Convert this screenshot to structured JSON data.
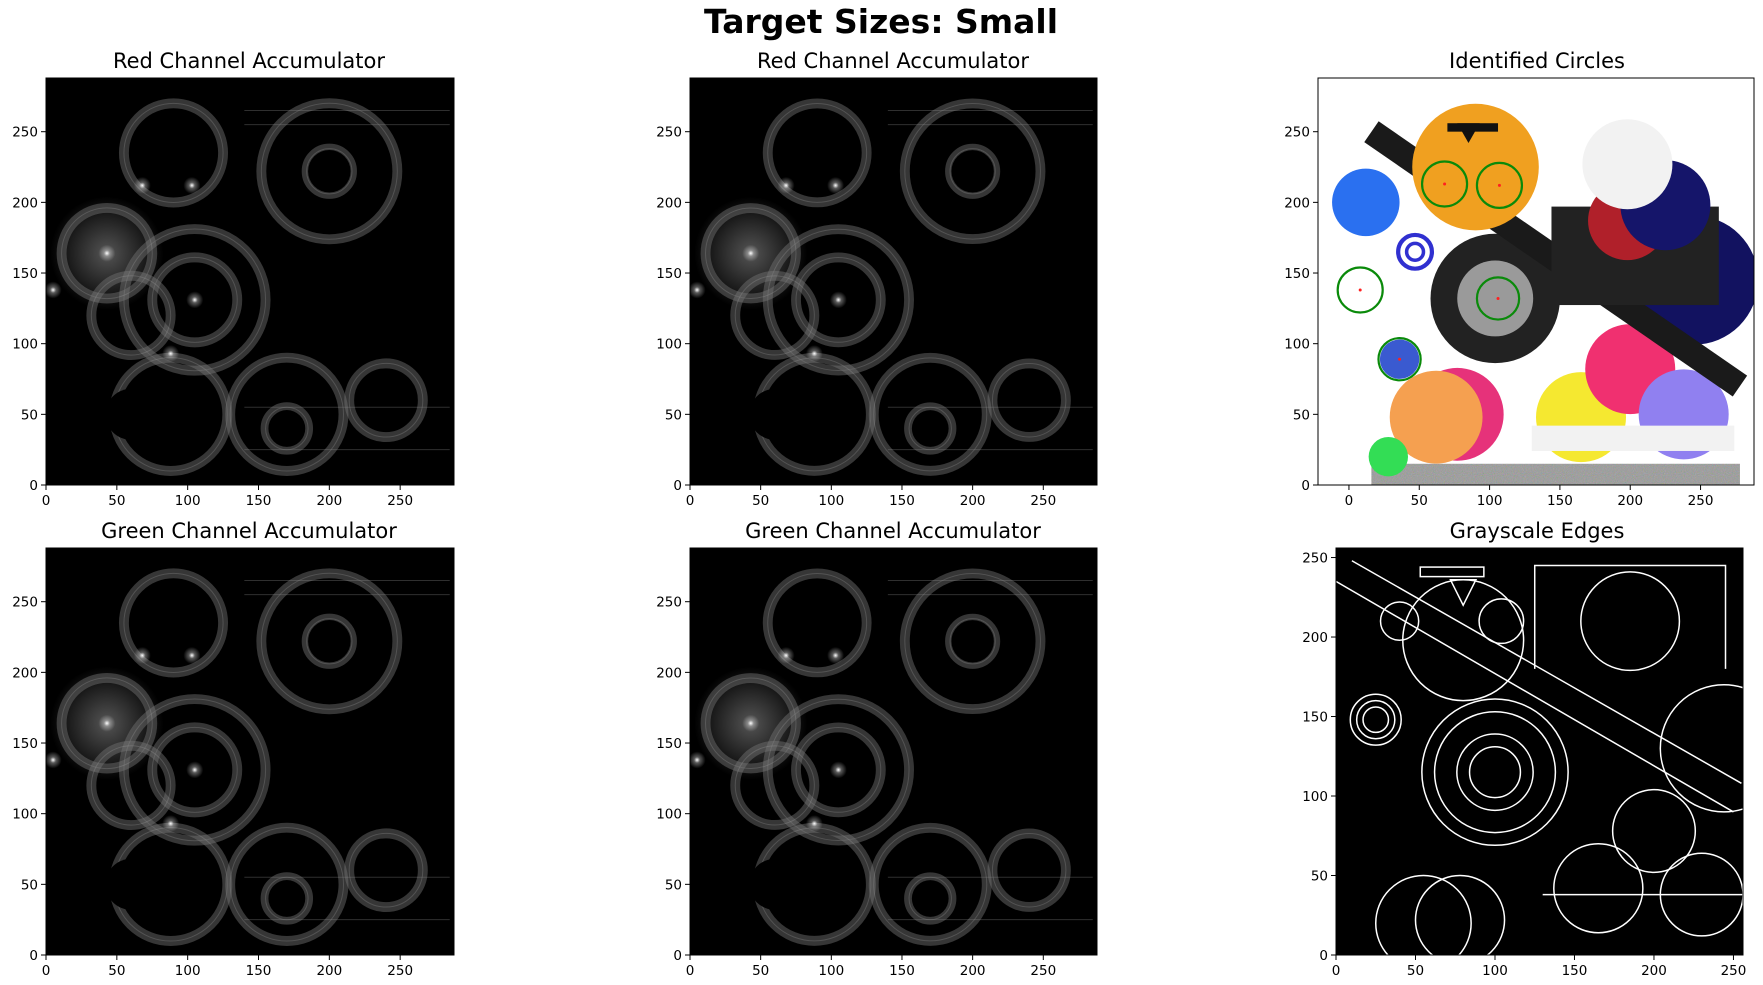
{
  "figure": {
    "suptitle": "Target Sizes: Small"
  },
  "chart_data": [
    {
      "id": "red1",
      "type": "heatmap",
      "title": "Red Channel Accumulator",
      "x_ticks": [
        "0",
        "50",
        "100",
        "150",
        "200",
        "250"
      ],
      "y_ticks": [
        "0",
        "50",
        "100",
        "150",
        "200",
        "250"
      ],
      "xlim": [
        0,
        288
      ],
      "ylim": [
        288,
        0
      ],
      "peaks": [
        [
          105,
          131
        ],
        [
          43,
          164
        ],
        [
          103,
          212
        ],
        [
          68,
          212
        ],
        [
          88,
          93
        ],
        [
          5,
          138
        ]
      ],
      "rings": [
        {
          "cx": 105,
          "cy": 131,
          "r": 30
        },
        {
          "cx": 105,
          "cy": 131,
          "r": 50
        },
        {
          "cx": 200,
          "cy": 222,
          "r": 16
        },
        {
          "cx": 200,
          "cy": 222,
          "r": 48
        },
        {
          "cx": 43,
          "cy": 164,
          "r": 32
        },
        {
          "cx": 88,
          "cy": 50,
          "r": 40
        },
        {
          "cx": 170,
          "cy": 50,
          "r": 40
        },
        {
          "cx": 170,
          "cy": 40,
          "r": 15
        },
        {
          "cx": 240,
          "cy": 60,
          "r": 26
        },
        {
          "cx": 90,
          "cy": 235,
          "r": 35
        },
        {
          "cx": 60,
          "cy": 120,
          "r": 28
        }
      ],
      "dark_blobs": [
        {
          "cx": 60,
          "cy": 50,
          "r": 18
        },
        {
          "cx": 170,
          "cy": 40,
          "r": 13
        },
        {
          "cx": 200,
          "cy": 222,
          "r": 15
        }
      ]
    },
    {
      "id": "red2",
      "type": "heatmap",
      "title": "Red Channel Accumulator",
      "x_ticks": [
        "0",
        "50",
        "100",
        "150",
        "200",
        "250"
      ],
      "y_ticks": [
        "0",
        "50",
        "100",
        "150",
        "200",
        "250"
      ],
      "xlim": [
        0,
        288
      ],
      "ylim": [
        288,
        0
      ],
      "peaks": [
        [
          105,
          131
        ],
        [
          43,
          164
        ],
        [
          103,
          212
        ],
        [
          68,
          212
        ],
        [
          88,
          93
        ],
        [
          5,
          138
        ]
      ],
      "rings": [
        {
          "cx": 105,
          "cy": 131,
          "r": 30
        },
        {
          "cx": 105,
          "cy": 131,
          "r": 50
        },
        {
          "cx": 200,
          "cy": 222,
          "r": 16
        },
        {
          "cx": 200,
          "cy": 222,
          "r": 48
        },
        {
          "cx": 43,
          "cy": 164,
          "r": 32
        },
        {
          "cx": 88,
          "cy": 50,
          "r": 40
        },
        {
          "cx": 170,
          "cy": 50,
          "r": 40
        },
        {
          "cx": 170,
          "cy": 40,
          "r": 15
        },
        {
          "cx": 240,
          "cy": 60,
          "r": 26
        },
        {
          "cx": 90,
          "cy": 235,
          "r": 35
        },
        {
          "cx": 60,
          "cy": 120,
          "r": 28
        }
      ],
      "dark_blobs": [
        {
          "cx": 60,
          "cy": 50,
          "r": 18
        },
        {
          "cx": 170,
          "cy": 40,
          "r": 13
        },
        {
          "cx": 200,
          "cy": 222,
          "r": 15
        }
      ]
    },
    {
      "id": "circles",
      "type": "image",
      "title": "Identified Circles",
      "x_ticks": [
        "0",
        "50",
        "100",
        "150",
        "200",
        "250"
      ],
      "y_ticks": [
        "0",
        "50",
        "100",
        "150",
        "200",
        "250"
      ],
      "xlim": [
        -22,
        288
      ],
      "ylim": [
        288,
        0
      ],
      "image_extent": [
        0,
        288,
        0,
        288
      ],
      "detected_circles": [
        {
          "x": 36,
          "y": 89,
          "r": 15
        },
        {
          "x": 8,
          "y": 138,
          "r": 16
        },
        {
          "x": 106,
          "y": 132,
          "r": 15
        },
        {
          "x": 68,
          "y": 213,
          "r": 16
        },
        {
          "x": 107,
          "y": 212,
          "r": 16
        }
      ]
    },
    {
      "id": "green1",
      "type": "heatmap",
      "title": "Green Channel Accumulator",
      "x_ticks": [
        "0",
        "50",
        "100",
        "150",
        "200",
        "250"
      ],
      "y_ticks": [
        "0",
        "50",
        "100",
        "150",
        "200",
        "250"
      ],
      "xlim": [
        0,
        288
      ],
      "ylim": [
        288,
        0
      ],
      "peaks": [
        [
          105,
          131
        ],
        [
          43,
          164
        ],
        [
          103,
          212
        ],
        [
          68,
          212
        ],
        [
          88,
          93
        ],
        [
          5,
          138
        ]
      ],
      "rings": [
        {
          "cx": 105,
          "cy": 131,
          "r": 30
        },
        {
          "cx": 105,
          "cy": 131,
          "r": 50
        },
        {
          "cx": 200,
          "cy": 222,
          "r": 16
        },
        {
          "cx": 200,
          "cy": 222,
          "r": 48
        },
        {
          "cx": 43,
          "cy": 164,
          "r": 32
        },
        {
          "cx": 88,
          "cy": 50,
          "r": 40
        },
        {
          "cx": 170,
          "cy": 50,
          "r": 40
        },
        {
          "cx": 170,
          "cy": 40,
          "r": 15
        },
        {
          "cx": 240,
          "cy": 60,
          "r": 26
        },
        {
          "cx": 90,
          "cy": 235,
          "r": 35
        },
        {
          "cx": 60,
          "cy": 120,
          "r": 28
        }
      ],
      "dark_blobs": [
        {
          "cx": 60,
          "cy": 50,
          "r": 18
        },
        {
          "cx": 170,
          "cy": 40,
          "r": 13
        },
        {
          "cx": 200,
          "cy": 222,
          "r": 15
        }
      ]
    },
    {
      "id": "green2",
      "type": "heatmap",
      "title": "Green Channel Accumulator",
      "x_ticks": [
        "0",
        "50",
        "100",
        "150",
        "200",
        "250"
      ],
      "y_ticks": [
        "0",
        "50",
        "100",
        "150",
        "200",
        "250"
      ],
      "xlim": [
        0,
        288
      ],
      "ylim": [
        288,
        0
      ],
      "peaks": [
        [
          105,
          131
        ],
        [
          43,
          164
        ],
        [
          103,
          212
        ],
        [
          68,
          212
        ],
        [
          88,
          93
        ],
        [
          5,
          138
        ]
      ],
      "rings": [
        {
          "cx": 105,
          "cy": 131,
          "r": 30
        },
        {
          "cx": 105,
          "cy": 131,
          "r": 50
        },
        {
          "cx": 200,
          "cy": 222,
          "r": 16
        },
        {
          "cx": 200,
          "cy": 222,
          "r": 48
        },
        {
          "cx": 43,
          "cy": 164,
          "r": 32
        },
        {
          "cx": 88,
          "cy": 50,
          "r": 40
        },
        {
          "cx": 170,
          "cy": 50,
          "r": 40
        },
        {
          "cx": 170,
          "cy": 40,
          "r": 15
        },
        {
          "cx": 240,
          "cy": 60,
          "r": 26
        },
        {
          "cx": 90,
          "cy": 235,
          "r": 35
        },
        {
          "cx": 60,
          "cy": 120,
          "r": 28
        }
      ],
      "dark_blobs": [
        {
          "cx": 60,
          "cy": 50,
          "r": 18
        },
        {
          "cx": 170,
          "cy": 40,
          "r": 13
        },
        {
          "cx": 200,
          "cy": 222,
          "r": 15
        }
      ]
    },
    {
      "id": "edges",
      "type": "image",
      "title": "Grayscale Edges",
      "x_ticks": [
        "0",
        "50",
        "100",
        "150",
        "200",
        "250"
      ],
      "y_ticks": [
        "0",
        "50",
        "100",
        "150",
        "200",
        "250"
      ],
      "xlim": [
        0,
        256
      ],
      "ylim": [
        256,
        0
      ]
    }
  ]
}
